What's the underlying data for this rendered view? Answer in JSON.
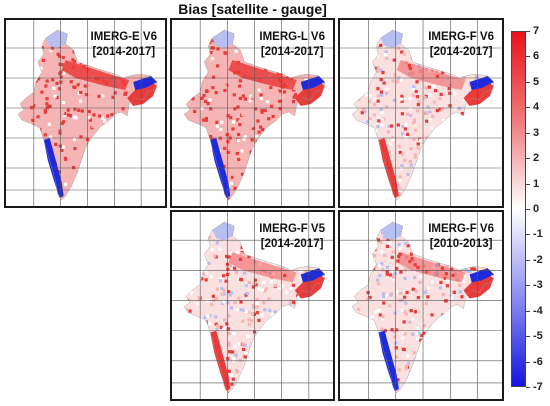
{
  "title": "Bias [satellite - gauge]",
  "panels": [
    {
      "product": "IMERG-E V6",
      "period": "[2014-2017]",
      "style": "strong"
    },
    {
      "product": "IMERG-L V6",
      "period": "[2014-2017]",
      "style": "strong"
    },
    {
      "product": "IMERG-F V6",
      "period": "[2014-2017]",
      "style": "medium"
    },
    {
      "product": "IMERG-F V5",
      "period": "[2014-2017]",
      "style": "medium"
    },
    {
      "product": "IMERG-F V6",
      "period": "[2010-2013]",
      "style": "mixed"
    }
  ],
  "colorbar": {
    "min": -7,
    "max": 7,
    "ticks": [
      "7",
      "6",
      "5",
      "4",
      "3",
      "2",
      "1",
      "0",
      "-1",
      "-2",
      "-3",
      "-4",
      "-5",
      "-6",
      "-7"
    ],
    "colors": {
      "high": "#e8121b",
      "mid": "#ffffff",
      "low": "#1414e0"
    }
  },
  "map_colors": {
    "positive": "#ea3b3b",
    "light_positive": "#f6b5b5",
    "negative": "#1f2bd8",
    "light_negative": "#b9bff0",
    "grid": "#555555"
  }
}
